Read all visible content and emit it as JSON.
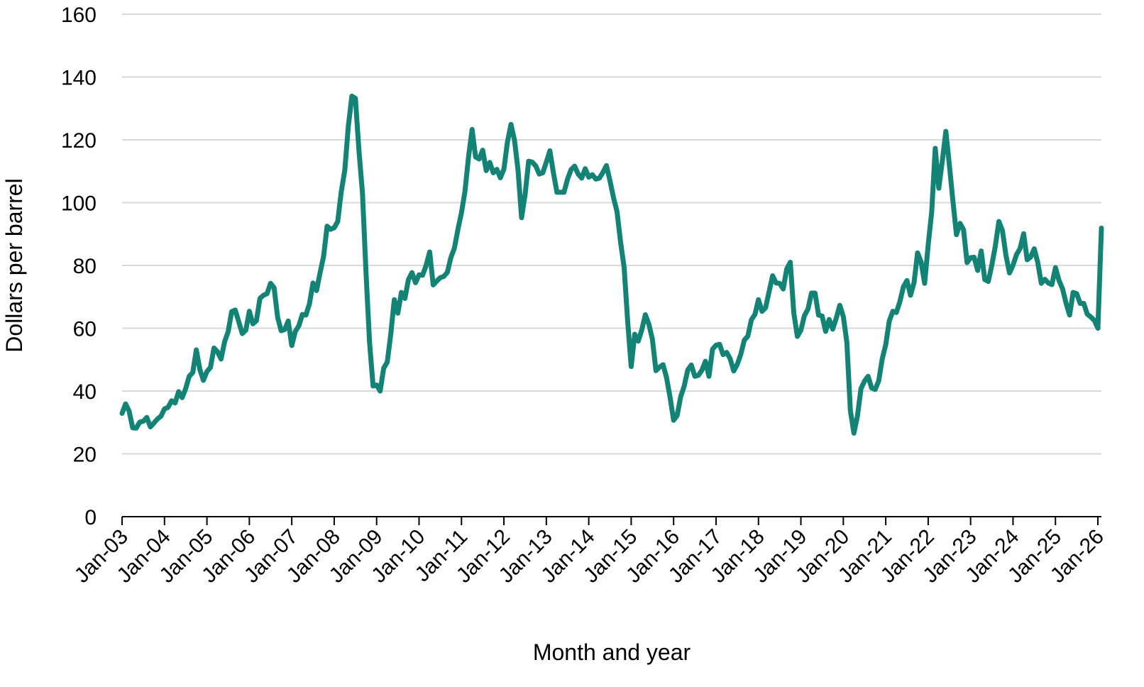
{
  "chart_data": {
    "type": "line",
    "title": "",
    "xlabel": "Month and year",
    "ylabel": "Dollars per barrel",
    "ylim": [
      0,
      160
    ],
    "yticks": [
      0,
      20,
      40,
      60,
      80,
      100,
      120,
      140,
      160
    ],
    "grid": true,
    "legend": "none",
    "line_color": "#138376",
    "grid_color": "#d9d9d9",
    "x_tick_labels": [
      "Jan-03",
      "Jan-04",
      "Jan-05",
      "Jan-06",
      "Jan-07",
      "Jan-08",
      "Jan-09",
      "Jan-10",
      "Jan-11",
      "Jan-12",
      "Jan-13",
      "Jan-14",
      "Jan-15",
      "Jan-16",
      "Jan-17",
      "Jan-18",
      "Jan-19",
      "Jan-20",
      "Jan-21",
      "Jan-22",
      "Jan-23",
      "Jan-24",
      "Jan-25",
      "Jan-26"
    ],
    "x_start": "2003-01",
    "series": [
      {
        "values": [
          32.9,
          35.9,
          33.6,
          28.3,
          28.2,
          30.1,
          30.4,
          31.6,
          28.6,
          29.8,
          31.1,
          32.0,
          34.3,
          34.8,
          36.9,
          36.2,
          39.8,
          37.9,
          40.8,
          44.7,
          45.9,
          53.1,
          46.9,
          43.4,
          46.2,
          47.5,
          53.7,
          52.5,
          50.2,
          55.7,
          58.9,
          65.3,
          65.8,
          62.1,
          58.3,
          59.4,
          65.4,
          61.4,
          62.4,
          69.5,
          70.5,
          71.0,
          74.3,
          72.9,
          63.5,
          59.2,
          59.6,
          62.3,
          54.5,
          59.0,
          60.8,
          64.4,
          64.2,
          67.8,
          74.4,
          72.0,
          77.6,
          82.9,
          92.5,
          91.5,
          92.0,
          94.0,
          103.5,
          110.3,
          124.4,
          133.9,
          133.2,
          116.6,
          103.0,
          77.7,
          55.5,
          41.6,
          41.9,
          40.0,
          47.3,
          49.2,
          58.1,
          69.1,
          64.8,
          71.4,
          69.5,
          75.5,
          77.7,
          74.5,
          77.0,
          76.9,
          80.0,
          84.3,
          73.8,
          75.0,
          76.1,
          76.5,
          77.8,
          82.5,
          85.5,
          91.5,
          96.8,
          103.7,
          114.6,
          123.3,
          114.5,
          113.9,
          116.7,
          110.2,
          112.8,
          109.5,
          110.6,
          107.9,
          110.7,
          119.3,
          124.9,
          119.8,
          110.3,
          95.2,
          102.6,
          113.2,
          112.9,
          111.7,
          109.1,
          109.5,
          112.9,
          116.5,
          109.5,
          103.3,
          103.3,
          103.3,
          107.5,
          110.5,
          111.6,
          109.1,
          107.8,
          110.8,
          108.1,
          108.9,
          107.5,
          107.8,
          109.6,
          111.8,
          107.0,
          101.6,
          97.1,
          87.4,
          79.4,
          62.3,
          47.8,
          58.1,
          55.9,
          59.5,
          64.3,
          61.3,
          56.5,
          46.5,
          47.6,
          48.4,
          44.3,
          38.0,
          30.7,
          32.2,
          38.2,
          41.6,
          46.7,
          48.3,
          44.7,
          45.0,
          46.6,
          49.5,
          44.7,
          53.3,
          54.6,
          54.9,
          51.6,
          52.3,
          50.3,
          46.4,
          48.5,
          51.7,
          56.2,
          57.5,
          62.7,
          64.4,
          69.1,
          65.4,
          66.5,
          71.6,
          76.7,
          74.4,
          74.3,
          72.5,
          78.9,
          81.0,
          64.8,
          57.4,
          59.4,
          64.0,
          66.1,
          71.2,
          71.2,
          64.2,
          63.9,
          59.0,
          62.8,
          59.7,
          63.2,
          67.3,
          63.7,
          55.5,
          33.7,
          26.6,
          32.1,
          40.8,
          43.2,
          44.7,
          41.0,
          40.5,
          43.2,
          50.2,
          54.8,
          62.3,
          65.4,
          65.0,
          68.5,
          73.2,
          75.2,
          70.5,
          74.5,
          84.0,
          81.1,
          74.3,
          86.5,
          97.1,
          117.3,
          104.6,
          113.3,
          122.7,
          111.9,
          100.5,
          89.8,
          93.4,
          91.4,
          80.9,
          82.5,
          82.6,
          78.4,
          84.6,
          75.5,
          74.9,
          80.1,
          86.2,
          94.0,
          91.1,
          83.2,
          77.6,
          80.1,
          83.5,
          85.4,
          90.1,
          81.8,
          82.7,
          85.3,
          80.9,
          74.3,
          75.6,
          74.4,
          73.9,
          79.3,
          75.2,
          72.6,
          68.0,
          64.2,
          71.4,
          71.0,
          67.9,
          67.9,
          64.5,
          63.6,
          62.5,
          60.0,
          91.9
        ]
      }
    ]
  }
}
